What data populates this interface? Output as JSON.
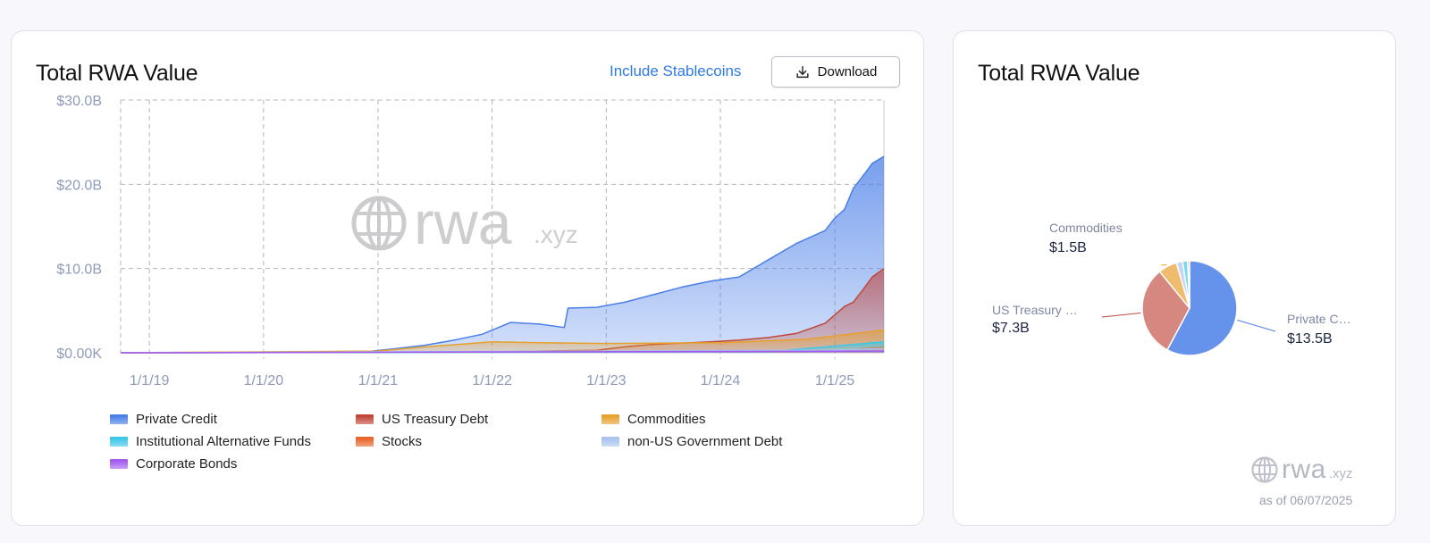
{
  "left_card": {
    "title": "Total RWA Value",
    "toggle_label": "Include Stablecoins",
    "download_label": "Download",
    "watermark_main": "rwa",
    "watermark_suffix": ".xyz"
  },
  "right_card": {
    "title": "Total RWA Value",
    "watermark_main": "rwa",
    "watermark_suffix": ".xyz",
    "as_of": "as of 06/07/2025"
  },
  "colors": {
    "accent_link": "#2f7ae5",
    "private_credit": "#4a7fe8",
    "us_treasury": "#c0463a",
    "commodities": "#e7a02d",
    "inst_alt_funds": "#3cc8e8",
    "stocks": "#e8642a",
    "non_us_gov": "#a9c4ef",
    "corporate_bonds": "#a45cf0"
  },
  "chart_data": [
    {
      "type": "area",
      "title": "Total RWA Value",
      "x_ticks": [
        "1/1/19",
        "1/1/20",
        "1/1/21",
        "1/1/22",
        "1/1/23",
        "1/1/24",
        "1/1/25"
      ],
      "y_ticks": [
        "$0.00K",
        "$10.0B",
        "$20.0B",
        "$30.0B"
      ],
      "ylim": [
        0,
        30
      ],
      "y_unit": "B USD",
      "x_range": [
        "2018-10-01",
        "2025-06-07"
      ],
      "grid": true,
      "stacked": false,
      "legend_position": "bottom",
      "series": [
        {
          "name": "Private Credit",
          "color_key": "private_credit",
          "points": [
            [
              "2018-10-01",
              0.02
            ],
            [
              "2020-06-01",
              0.05
            ],
            [
              "2020-12-01",
              0.15
            ],
            [
              "2021-03-01",
              0.5
            ],
            [
              "2021-06-01",
              0.9
            ],
            [
              "2021-09-01",
              1.5
            ],
            [
              "2021-12-01",
              2.2
            ],
            [
              "2022-03-01",
              3.6
            ],
            [
              "2022-06-01",
              3.4
            ],
            [
              "2022-08-20",
              3.0
            ],
            [
              "2022-09-01",
              5.3
            ],
            [
              "2022-12-01",
              5.4
            ],
            [
              "2023-03-01",
              6.0
            ],
            [
              "2023-06-01",
              6.9
            ],
            [
              "2023-09-01",
              7.8
            ],
            [
              "2023-12-01",
              8.5
            ],
            [
              "2024-03-01",
              9.0
            ],
            [
              "2024-06-01",
              11.0
            ],
            [
              "2024-09-01",
              13.0
            ],
            [
              "2024-12-01",
              14.5
            ],
            [
              "2025-01-01",
              16.0
            ],
            [
              "2025-02-01",
              17.0
            ],
            [
              "2025-03-01",
              19.5
            ],
            [
              "2025-04-01",
              21.0
            ],
            [
              "2025-05-01",
              22.5
            ],
            [
              "2025-06-07",
              23.3
            ]
          ]
        },
        {
          "name": "US Treasury Debt",
          "color_key": "us_treasury",
          "points": [
            [
              "2018-10-01",
              0.0
            ],
            [
              "2021-06-01",
              0.05
            ],
            [
              "2022-01-01",
              0.1
            ],
            [
              "2022-06-01",
              0.2
            ],
            [
              "2022-12-01",
              0.3
            ],
            [
              "2023-03-01",
              0.7
            ],
            [
              "2023-06-01",
              1.0
            ],
            [
              "2023-12-01",
              1.3
            ],
            [
              "2024-03-01",
              1.5
            ],
            [
              "2024-06-01",
              1.8
            ],
            [
              "2024-09-01",
              2.3
            ],
            [
              "2024-12-01",
              3.5
            ],
            [
              "2025-01-01",
              4.5
            ],
            [
              "2025-02-01",
              5.5
            ],
            [
              "2025-03-01",
              6.0
            ],
            [
              "2025-04-01",
              7.5
            ],
            [
              "2025-05-01",
              9.0
            ],
            [
              "2025-06-07",
              10.0
            ]
          ]
        },
        {
          "name": "Commodities",
          "color_key": "commodities",
          "points": [
            [
              "2018-10-01",
              0.0
            ],
            [
              "2021-01-01",
              0.2
            ],
            [
              "2021-06-01",
              0.7
            ],
            [
              "2022-01-01",
              1.3
            ],
            [
              "2022-06-01",
              1.2
            ],
            [
              "2023-01-01",
              1.1
            ],
            [
              "2024-01-01",
              1.2
            ],
            [
              "2024-10-01",
              1.6
            ],
            [
              "2025-01-01",
              2.0
            ],
            [
              "2025-06-07",
              2.7
            ]
          ]
        },
        {
          "name": "Institutional Alternative Funds",
          "color_key": "inst_alt_funds",
          "points": [
            [
              "2018-10-01",
              0.0
            ],
            [
              "2024-06-01",
              0.1
            ],
            [
              "2025-01-01",
              0.8
            ],
            [
              "2025-06-07",
              1.3
            ]
          ]
        },
        {
          "name": "Stocks",
          "color_key": "stocks",
          "points": [
            [
              "2018-10-01",
              0.0
            ],
            [
              "2024-12-01",
              0.2
            ],
            [
              "2025-06-07",
              0.6
            ]
          ]
        },
        {
          "name": "non-US Government Debt",
          "color_key": "non_us_gov",
          "points": [
            [
              "2018-10-01",
              0.0
            ],
            [
              "2024-12-01",
              0.3
            ],
            [
              "2025-06-07",
              0.5
            ]
          ]
        },
        {
          "name": "Corporate Bonds",
          "color_key": "corporate_bonds",
          "points": [
            [
              "2018-10-01",
              0.0
            ],
            [
              "2025-06-07",
              0.2
            ]
          ]
        }
      ]
    },
    {
      "type": "pie",
      "title": "Total RWA Value",
      "slices": [
        {
          "label": "Private C…",
          "value": 13.5,
          "display": "$13.5B",
          "color_key": "private_credit"
        },
        {
          "label": "US Treasury …",
          "value": 7.3,
          "display": "$7.3B",
          "color_key": "us_treasury"
        },
        {
          "label": "Commodities",
          "value": 1.5,
          "display": "$1.5B",
          "color_key": "commodities"
        },
        {
          "label": "",
          "value": 0.5,
          "color_key": "non_us_gov"
        },
        {
          "label": "",
          "value": 0.4,
          "color_key": "inst_alt_funds"
        },
        {
          "label": "",
          "value": 0.15,
          "color_key": "stocks"
        }
      ]
    }
  ]
}
